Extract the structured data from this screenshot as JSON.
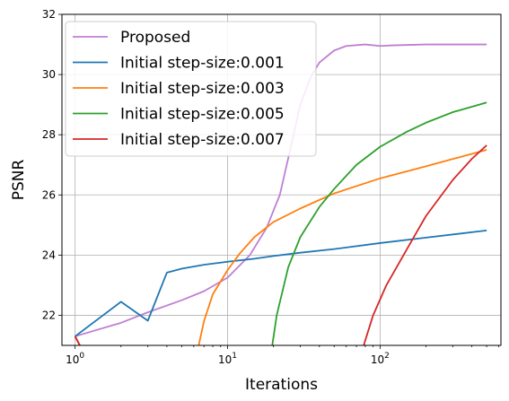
{
  "chart_data": {
    "type": "line",
    "xlabel": "Iterations",
    "ylabel": "PSNR",
    "xscale": "log",
    "xlim": [
      0.82,
      620
    ],
    "ylim": [
      21,
      32
    ],
    "xticks": [
      {
        "value": 1,
        "base": "10",
        "exp": "0"
      },
      {
        "value": 10,
        "base": "10",
        "exp": "1"
      },
      {
        "value": 100,
        "base": "10",
        "exp": "2"
      }
    ],
    "yticks": [
      22,
      24,
      26,
      28,
      30,
      32
    ],
    "grid": true,
    "legend_position": "upper-left",
    "series": [
      {
        "name": "Proposed",
        "color": "#bf7fd3",
        "points": [
          [
            1,
            21.3
          ],
          [
            2,
            21.75
          ],
          [
            3,
            22.1
          ],
          [
            5,
            22.5
          ],
          [
            7,
            22.8
          ],
          [
            10,
            23.25
          ],
          [
            14,
            24.0
          ],
          [
            18,
            24.9
          ],
          [
            22,
            26.0
          ],
          [
            26,
            27.6
          ],
          [
            30,
            29.0
          ],
          [
            35,
            29.9
          ],
          [
            40,
            30.4
          ],
          [
            50,
            30.8
          ],
          [
            60,
            30.95
          ],
          [
            80,
            31.0
          ],
          [
            100,
            30.95
          ],
          [
            120,
            30.97
          ],
          [
            200,
            31.0
          ],
          [
            500,
            31.0
          ]
        ]
      },
      {
        "name": "Initial step-size:0.001",
        "color": "#1f77b4",
        "points": [
          [
            1,
            21.3
          ],
          [
            2,
            22.45
          ],
          [
            3,
            21.82
          ],
          [
            4,
            23.42
          ],
          [
            5,
            23.55
          ],
          [
            7,
            23.68
          ],
          [
            10,
            23.78
          ],
          [
            15,
            23.88
          ],
          [
            20,
            23.97
          ],
          [
            30,
            24.08
          ],
          [
            50,
            24.2
          ],
          [
            100,
            24.4
          ],
          [
            200,
            24.58
          ],
          [
            500,
            24.82
          ]
        ]
      },
      {
        "name": "Initial step-size:0.003",
        "color": "#ff7f0e",
        "points": [
          [
            1,
            21.3
          ],
          [
            1.1,
            20.9
          ],
          [
            6.4,
            20.9
          ],
          [
            7,
            21.8
          ],
          [
            8,
            22.7
          ],
          [
            10,
            23.5
          ],
          [
            12,
            24.05
          ],
          [
            15,
            24.6
          ],
          [
            20,
            25.1
          ],
          [
            30,
            25.55
          ],
          [
            50,
            26.05
          ],
          [
            100,
            26.55
          ],
          [
            200,
            26.95
          ],
          [
            500,
            27.5
          ]
        ]
      },
      {
        "name": "Initial step-size:0.005",
        "color": "#2ca02c",
        "points": [
          [
            1,
            21.3
          ],
          [
            1.1,
            20.9
          ],
          [
            19.5,
            20.9
          ],
          [
            21,
            22.0
          ],
          [
            25,
            23.6
          ],
          [
            30,
            24.6
          ],
          [
            40,
            25.6
          ],
          [
            50,
            26.2
          ],
          [
            70,
            27.0
          ],
          [
            100,
            27.6
          ],
          [
            150,
            28.1
          ],
          [
            200,
            28.4
          ],
          [
            300,
            28.75
          ],
          [
            500,
            29.07
          ]
        ]
      },
      {
        "name": "Initial step-size:0.007",
        "color": "#d62728",
        "points": [
          [
            1,
            21.3
          ],
          [
            1.1,
            20.9
          ],
          [
            77,
            20.9
          ],
          [
            90,
            22.0
          ],
          [
            110,
            23.0
          ],
          [
            150,
            24.2
          ],
          [
            200,
            25.3
          ],
          [
            300,
            26.5
          ],
          [
            400,
            27.2
          ],
          [
            500,
            27.65
          ]
        ]
      }
    ]
  }
}
